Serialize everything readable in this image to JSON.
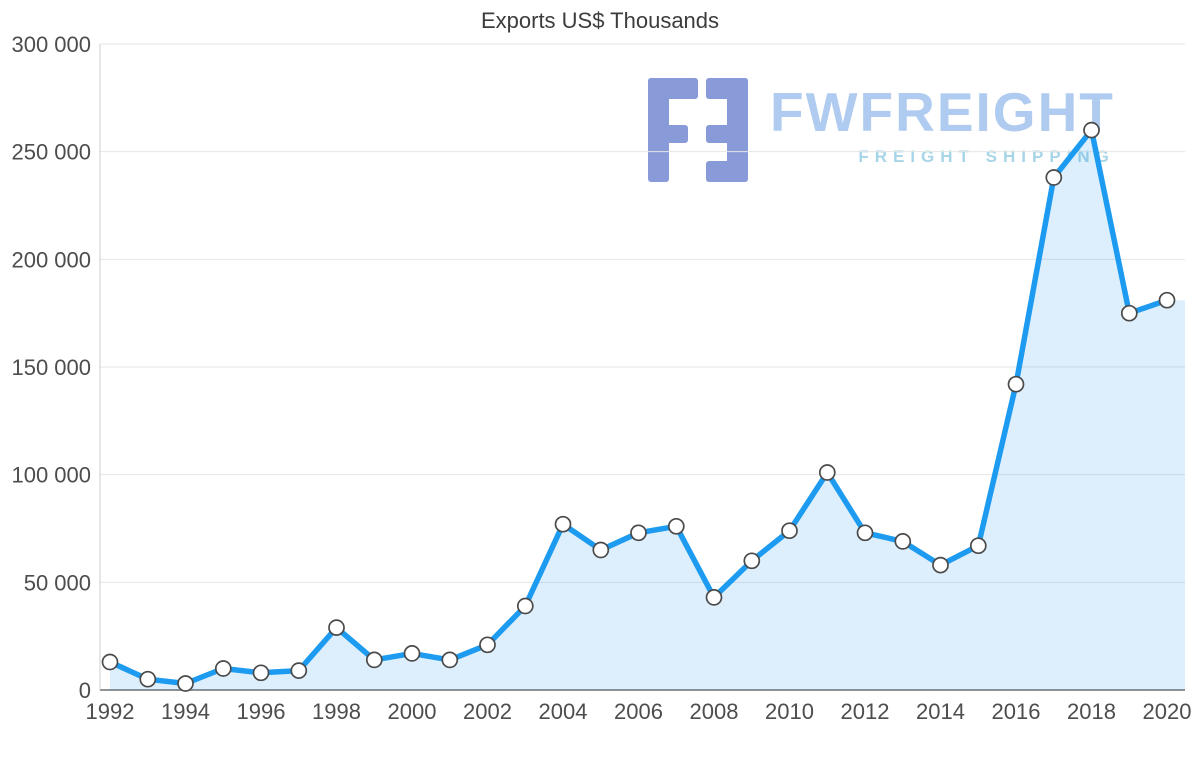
{
  "title": "Exports US$ Thousands",
  "watermark": {
    "brand": "FWFREIGHT",
    "tagline": "FREIGHT SHIPPING"
  },
  "chart_data": {
    "type": "area",
    "title": "Exports US$ Thousands",
    "xlabel": "",
    "ylabel": "",
    "x": [
      1992,
      1993,
      1994,
      1995,
      1996,
      1997,
      1998,
      1999,
      2000,
      2001,
      2002,
      2003,
      2004,
      2005,
      2006,
      2007,
      2008,
      2009,
      2010,
      2011,
      2012,
      2013,
      2014,
      2015,
      2016,
      2017,
      2018,
      2019,
      2020
    ],
    "series": [
      {
        "name": "Exports US$ Thousands",
        "values": [
          13000,
          5000,
          3000,
          10000,
          8000,
          9000,
          29000,
          14000,
          17000,
          14000,
          21000,
          39000,
          77000,
          65000,
          73000,
          76000,
          43000,
          60000,
          74000,
          101000,
          73000,
          69000,
          58000,
          67000,
          142000,
          238000,
          260000,
          175000,
          181000
        ]
      }
    ],
    "ylim": [
      0,
      300000
    ],
    "y_tick_step": 50000,
    "y_tick_labels": [
      "0",
      "50 000",
      "100 000",
      "150 000",
      "200 000",
      "250 000",
      "300 000"
    ],
    "x_tick_step": 2,
    "grid": "horizontal",
    "legend": false,
    "marker": "circle",
    "colors": {
      "line": "#1d9bf1",
      "area_fill": "rgba(30, 150, 240, 0.15)",
      "marker_fill": "#ffffff",
      "marker_stroke": "#4a4a4a",
      "grid_line": "#e6e6e6",
      "axis_line": "#919191",
      "y_axis_line": "#cccccc",
      "tick_label": "#4d4d4d",
      "title": "#3c3c3c",
      "brand_text": "#a9c7ef",
      "tagline_text": "#9fd2e6",
      "logo_icon": "#8092d5"
    }
  }
}
